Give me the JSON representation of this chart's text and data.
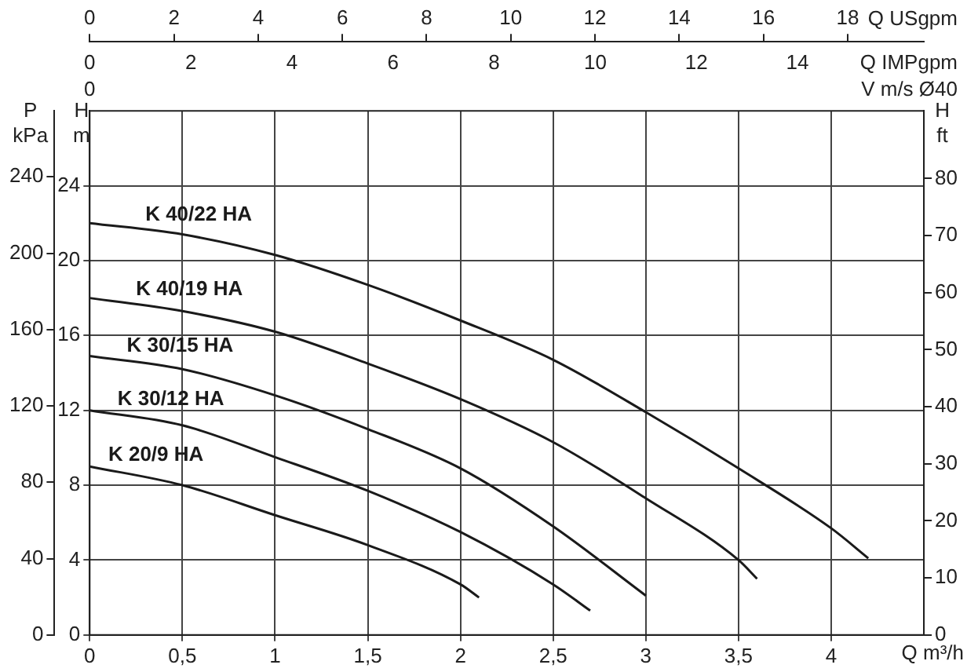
{
  "chart_data": {
    "type": "line",
    "xlabel": "Q m³/h",
    "ylabel": "H m",
    "y2label": "H ft",
    "y3label": "P kPa",
    "x2label": "Q USgpm",
    "series": [
      {
        "name": "K 40/22 HA",
        "color": "#1a1a1a",
        "x": [
          0,
          0.5,
          1,
          1.5,
          2,
          2.5,
          3,
          3.5,
          4,
          4.2
        ],
        "values": [
          22.0,
          21.4,
          20.3,
          18.7,
          16.8,
          14.7,
          11.9,
          8.9,
          5.7,
          4.1
        ]
      },
      {
        "name": "K 40/19 HA",
        "color": "#1a1a1a",
        "x": [
          0,
          0.5,
          1,
          1.5,
          2,
          2.5,
          3,
          3.5,
          3.6
        ],
        "values": [
          18.0,
          17.3,
          16.2,
          14.5,
          12.6,
          10.3,
          7.3,
          4.0,
          3.0
        ]
      },
      {
        "name": "K 30/15 HA",
        "color": "#1a1a1a",
        "x": [
          0,
          0.5,
          1,
          1.5,
          2,
          2.5,
          3
        ],
        "values": [
          14.9,
          14.2,
          12.8,
          11.0,
          8.9,
          5.8,
          2.1
        ]
      },
      {
        "name": "K 30/12 HA",
        "color": "#1a1a1a",
        "x": [
          0,
          0.5,
          1,
          1.5,
          2,
          2.5,
          2.7
        ],
        "values": [
          12.0,
          11.2,
          9.5,
          7.7,
          5.5,
          2.7,
          1.3
        ]
      },
      {
        "name": "K 20/9 HA",
        "color": "#1a1a1a",
        "x": [
          0,
          0.5,
          1,
          1.5,
          2,
          2.1
        ],
        "values": [
          9.0,
          8.0,
          6.4,
          4.8,
          2.7,
          2.0
        ]
      }
    ],
    "annotations": [
      "0",
      "2",
      "4",
      "6",
      "8",
      "10",
      "12",
      "14",
      "Q IMPgpm",
      "0",
      "V m/s Ø40"
    ],
    "xlim": [
      0,
      4.5
    ],
    "xticks": [
      0,
      {
        "value": 0.5,
        "label": "0,5"
      },
      1,
      {
        "value": 1.5,
        "label": "1,5"
      },
      2,
      {
        "value": 2.5,
        "label": "2,5"
      },
      3,
      {
        "value": 3.5,
        "label": "3,5"
      },
      4
    ],
    "x2lim": [
      0,
      19.81
    ],
    "x2ticks": [
      0,
      2,
      4,
      6,
      8,
      10,
      12,
      14,
      16,
      18
    ],
    "ylim": [
      0,
      28
    ],
    "yticks": [
      0,
      4,
      8,
      12,
      16,
      20,
      24
    ],
    "y2lim": [
      0,
      91.86
    ],
    "y2ticks": [
      0,
      10,
      20,
      30,
      40,
      50,
      60,
      70,
      80
    ],
    "y3lim": [
      0,
      274.6
    ],
    "y3ticks": [
      0,
      40,
      80,
      120,
      160,
      200,
      240
    ],
    "grid": true,
    "legend": false,
    "marker": "none",
    "line_style": "solid"
  }
}
